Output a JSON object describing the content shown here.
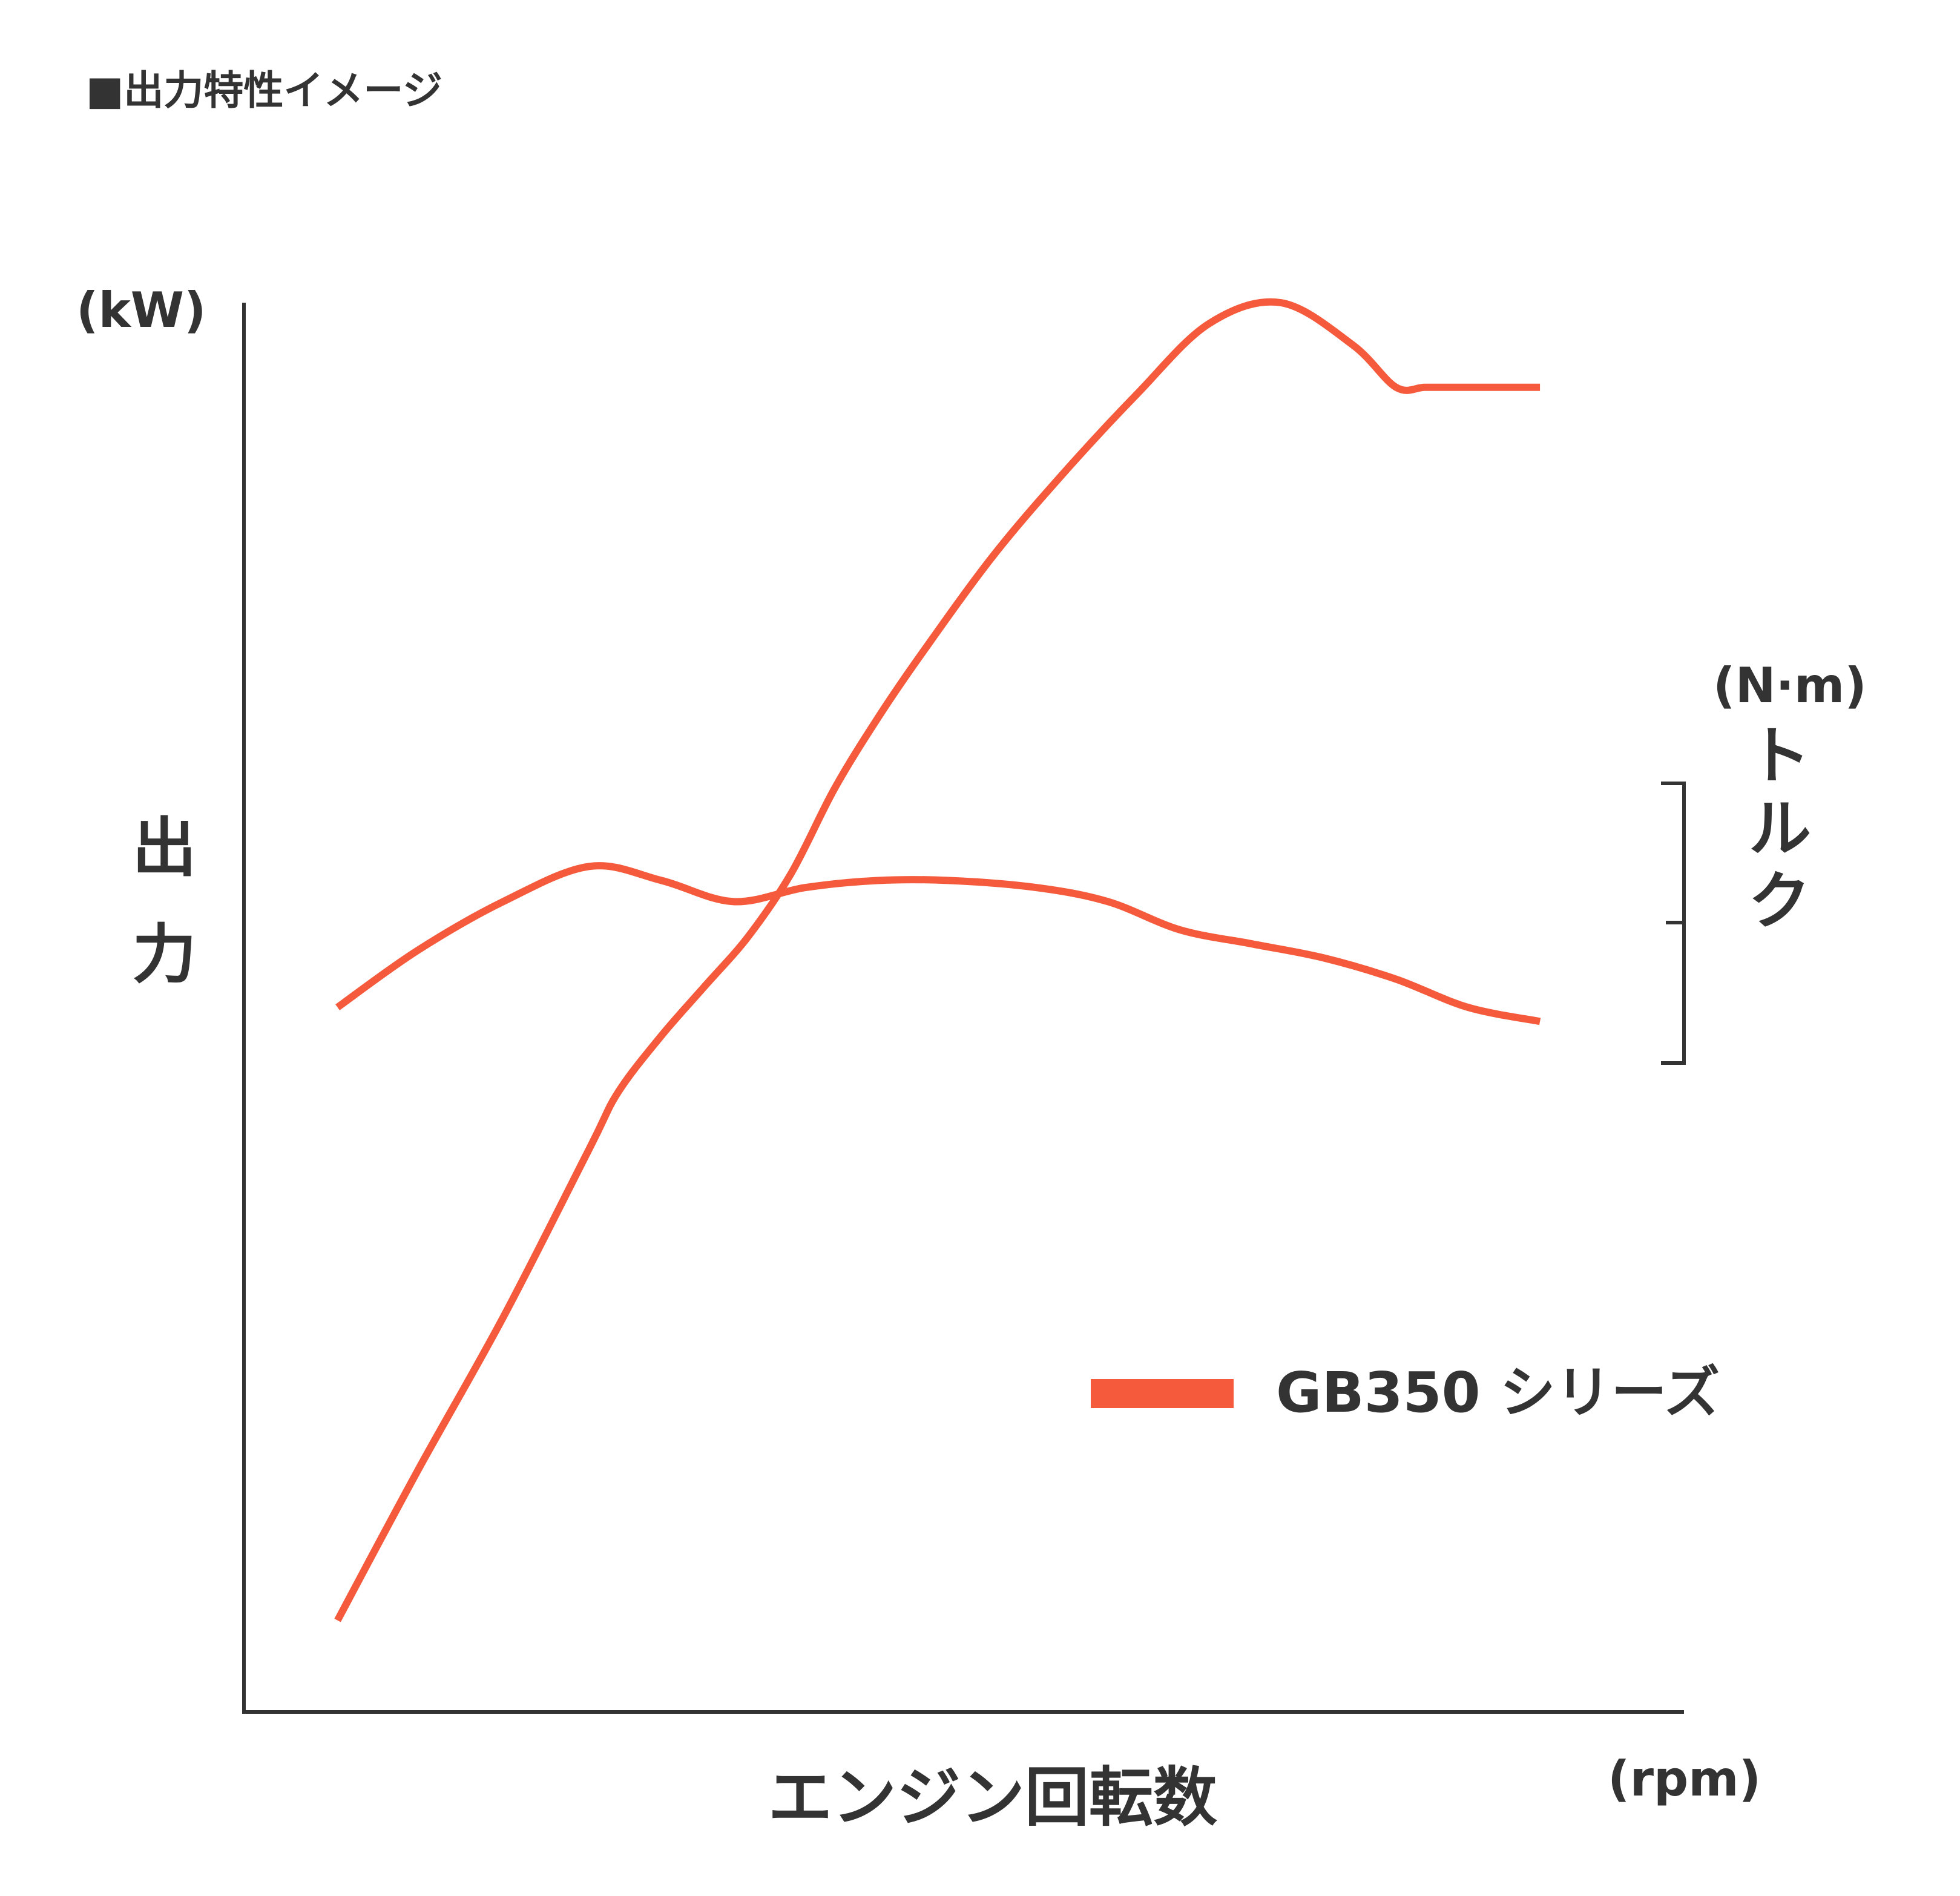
{
  "chart_data": {
    "type": "line",
    "title": "■出力特性イメージ",
    "xlabel": "エンジン回転数",
    "x_unit": "(rpm)",
    "ylabel_left": "出力",
    "y_unit_left": "(kW)",
    "ylabel_right": "トルク",
    "y_unit_right": "(N·m)",
    "xlim": [
      0,
      100
    ],
    "ylim": [
      0,
      100
    ],
    "grid": false,
    "legend": "bottom-right",
    "legend_label": "GB350 シリーズ",
    "line_color": "#F55A3C",
    "axis_color": "#333333",
    "series": [
      {
        "values_x": [
          6.5,
          12,
          18,
          24,
          26,
          29,
          32,
          35,
          38,
          41,
          44,
          47,
          52,
          57,
          62,
          67,
          72,
          77,
          80,
          82,
          84,
          86,
          90
        ],
        "values_y": [
          6.5,
          17,
          28,
          40,
          44,
          48,
          51.5,
          55,
          59.5,
          65.5,
          70.5,
          75,
          82,
          88,
          93.5,
          98.5,
          100,
          97,
          94,
          94,
          94,
          94,
          94
        ]
      },
      {
        "values_x": [
          6.5,
          12,
          18,
          24,
          29,
          34,
          39,
          44,
          49,
          55,
          60,
          65,
          70,
          75,
          80,
          85,
          90
        ],
        "values_y": [
          50,
          54,
          57.5,
          60,
          59,
          57.5,
          58.5,
          59,
          59,
          58.5,
          57.5,
          55.5,
          54.5,
          53.5,
          52,
          50,
          49
        ]
      }
    ]
  }
}
